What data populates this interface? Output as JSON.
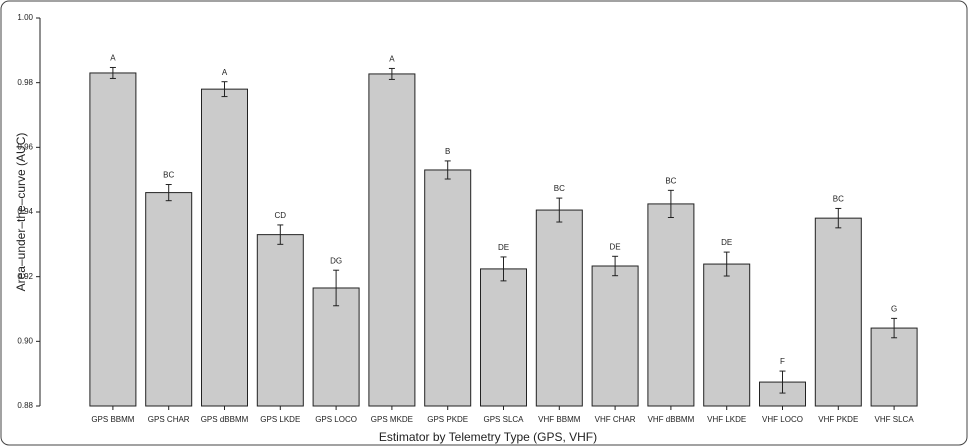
{
  "chart_data": {
    "type": "bar",
    "x_label": "Estimator by Telemetry Type (GPS, VHF)",
    "y_label": "Area–under–the–curve (AUC)",
    "categories": [
      "GPS BBMM",
      "GPS CHAR",
      "GPS dBBMM",
      "GPS LKDE",
      "GPS LOCO",
      "GPS MKDE",
      "GPS PKDE",
      "GPS SLCA",
      "VHF BBMM",
      "VHF CHAR",
      "VHF dBBMM",
      "VHF LKDE",
      "VHF LOCO",
      "VHF PKDE",
      "VHF SLCA"
    ],
    "values": [
      0.983,
      0.946,
      0.978,
      0.933,
      0.9165,
      0.9827,
      0.953,
      0.9224,
      0.9406,
      0.9233,
      0.9425,
      0.9239,
      0.8874,
      0.9381,
      0.9041
    ],
    "errors": [
      0.0017,
      0.0025,
      0.0023,
      0.003,
      0.0055,
      0.0017,
      0.0028,
      0.0037,
      0.0037,
      0.003,
      0.0042,
      0.0037,
      0.0034,
      0.003,
      0.003
    ],
    "group_letters": [
      "A",
      "BC",
      "A",
      "CD",
      "DG",
      "A",
      "B",
      "DE",
      "BC",
      "DE",
      "BC",
      "DE",
      "F",
      "BC",
      "G"
    ],
    "color": "#cbcbcb",
    "ylim": [
      0.88,
      1.0
    ],
    "yticks": [
      0.88,
      {
        "value": 0.9,
        "label": "0.90"
      },
      0.92,
      0.94,
      0.96,
      0.98,
      {
        "value": 1.0,
        "label": "1.00"
      }
    ]
  }
}
